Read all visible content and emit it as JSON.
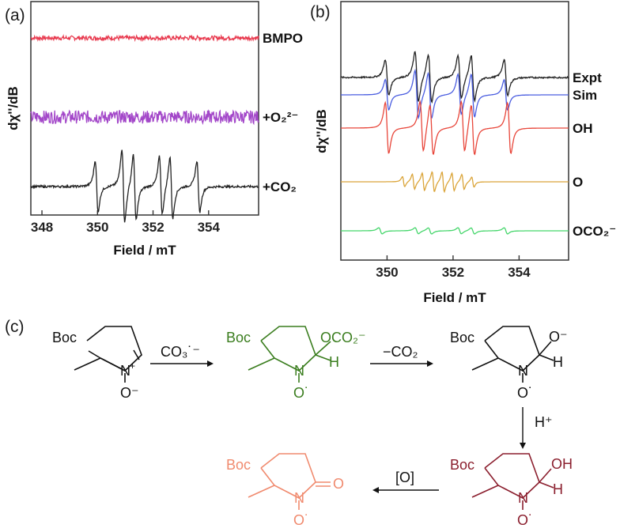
{
  "panels": {
    "a": {
      "label": "(a)"
    },
    "b": {
      "label": "(b)"
    },
    "c": {
      "label": "(c)"
    }
  },
  "chart_data": [
    {
      "type": "line",
      "panel": "(a)",
      "xlabel": "Field / mT",
      "ylabel": "dχ''/dB",
      "xlim": [
        347.6,
        355.8
      ],
      "xticks": [
        "348",
        "350",
        "352",
        "354"
      ],
      "xtick_values": [
        348,
        350,
        352,
        354
      ],
      "grid": false,
      "series": [
        {
          "name": "BMPO",
          "color": "#e8394e",
          "kind": "noise",
          "offset": 0.0,
          "amplitude": 0.05
        },
        {
          "name": "+O₂²⁻",
          "color": "#a347c9",
          "kind": "noise",
          "offset": -1.0,
          "amplitude": 0.15
        },
        {
          "name": "+CO₂",
          "color": "#222222",
          "kind": "epr",
          "offset": -1.9,
          "amplitude": 1.0,
          "line_centers": [
            349.97,
            350.93,
            351.34,
            352.28,
            352.66,
            353.63
          ],
          "line_heights": [
            0.7,
            1.0,
            0.9,
            0.8,
            0.85,
            0.7
          ]
        }
      ]
    },
    {
      "type": "line",
      "panel": "(b)",
      "xlabel": "Field / mT",
      "ylabel": "dχ''/dB",
      "xlim": [
        348.6,
        355.5
      ],
      "xticks": [
        "350",
        "352",
        "354"
      ],
      "xtick_values": [
        350,
        352,
        354
      ],
      "grid": false,
      "series": [
        {
          "name": "Expt",
          "color": "#222222",
          "kind": "epr",
          "offset": 0.0,
          "line_centers": [
            350.0,
            350.9,
            351.3,
            352.2,
            352.6,
            353.6
          ],
          "line_heights": [
            0.7,
            1.0,
            0.95,
            0.85,
            0.9,
            0.7
          ]
        },
        {
          "name": "Sim",
          "color": "#4a5de0",
          "kind": "epr",
          "offset": -0.3,
          "line_centers": [
            350.0,
            350.9,
            351.3,
            352.2,
            352.6,
            353.6
          ],
          "line_heights": [
            0.6,
            0.95,
            0.9,
            0.8,
            0.85,
            0.6
          ]
        },
        {
          "name": "OH",
          "color": "#e8463a",
          "kind": "epr",
          "offset": -0.8,
          "line_centers": [
            350.0,
            351.05,
            351.35,
            352.3,
            352.6,
            353.7
          ],
          "line_heights": [
            1.0,
            1.0,
            1.0,
            1.0,
            1.0,
            1.0
          ]
        },
        {
          "name": "O",
          "color": "#dba53a",
          "kind": "hyperfine",
          "offset": -1.65,
          "line_centers": [
            350.5,
            350.8,
            351.1,
            351.4,
            351.7,
            352.0,
            352.3,
            352.6
          ],
          "line_heights": [
            0.2,
            0.3,
            0.35,
            0.4,
            0.4,
            0.35,
            0.3,
            0.2
          ]
        },
        {
          "name": "OCO₂⁻",
          "color": "#45d66b",
          "kind": "epr",
          "offset": -2.5,
          "line_centers": [
            349.8,
            350.9,
            351.3,
            352.2,
            352.6,
            353.6
          ],
          "line_heights": [
            0.12,
            0.12,
            0.12,
            0.12,
            0.12,
            0.12
          ]
        }
      ]
    }
  ],
  "scheme": {
    "reagent1": "CO₃˙⁻",
    "reagent2": "−CO₂",
    "reagent3": "H⁺",
    "reagent4": "[O]",
    "mol1": {
      "boc": "Boc",
      "n": "N",
      "plus": "+",
      "o": "O⁻",
      "color": "#111111"
    },
    "mol2": {
      "boc": "Boc",
      "n": "N",
      "sub": "OCO₂⁻",
      "h": "H",
      "o": "O˙",
      "color": "#3a7d1e"
    },
    "mol3": {
      "boc": "Boc",
      "n": "N",
      "sub": "O⁻",
      "h": "H",
      "o": "O˙",
      "color": "#111111"
    },
    "mol4": {
      "boc": "Boc",
      "n": "N",
      "sub": "OH",
      "h": "H",
      "o": "O˙",
      "color": "#8b1f2e"
    },
    "mol5": {
      "boc": "Boc",
      "n": "N",
      "sub": "O",
      "o": "O˙",
      "color": "#f08a6e"
    }
  }
}
